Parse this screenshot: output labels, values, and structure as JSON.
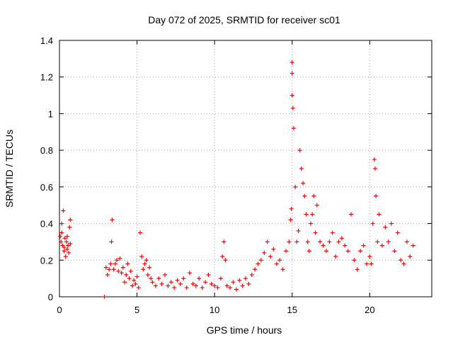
{
  "chart_data": {
    "type": "scatter",
    "title": "Day 072 of 2025, SRMTID for receiver sc01",
    "xlabel": "GPS time / hours",
    "ylabel": "SRMTID / TECUs",
    "xlim": [
      0,
      24
    ],
    "ylim": [
      0,
      1.4
    ],
    "xticks": [
      0,
      5,
      10,
      15,
      20
    ],
    "xtick_labels": [
      "0",
      "5",
      "10",
      "15",
      "20"
    ],
    "yticks": [
      0,
      0.2,
      0.4,
      0.6,
      0.8,
      1.0,
      1.2,
      1.4
    ],
    "ytick_labels": [
      "0",
      "0.2",
      "0.4",
      "0.6",
      "0.8",
      "1",
      "1.2",
      "1.4"
    ],
    "grid": true,
    "marker": "+",
    "color": "#ff0000",
    "series": [
      {
        "name": "SRMTID",
        "x": [
          0.05,
          0.1,
          0.15,
          0.2,
          0.25,
          0.3,
          0.35,
          0.4,
          0.45,
          0.5,
          0.55,
          0.6,
          0.65,
          0.7,
          0.15,
          0.3,
          0.5,
          0.7,
          2.9,
          3.0,
          3.1,
          3.2,
          3.3,
          3.35,
          3.4,
          3.5,
          3.6,
          3.7,
          3.8,
          3.9,
          4.0,
          4.1,
          4.2,
          4.3,
          4.4,
          4.5,
          4.6,
          4.7,
          4.8,
          4.9,
          5.0,
          5.1,
          5.2,
          5.3,
          5.4,
          5.5,
          5.6,
          5.7,
          5.8,
          5.9,
          6.0,
          6.2,
          6.4,
          6.6,
          6.8,
          7.0,
          7.2,
          7.4,
          7.6,
          7.8,
          8.0,
          8.2,
          8.4,
          8.6,
          8.8,
          9.0,
          9.2,
          9.4,
          9.6,
          9.8,
          10.0,
          10.2,
          10.4,
          10.5,
          10.6,
          10.7,
          10.8,
          11.0,
          11.2,
          11.4,
          11.6,
          11.8,
          12.0,
          12.2,
          12.4,
          12.6,
          12.8,
          13.0,
          13.2,
          13.4,
          13.6,
          13.8,
          14.0,
          14.2,
          14.4,
          14.6,
          14.8,
          14.9,
          14.95,
          15.0,
          15.0,
          15.0,
          15.05,
          15.1,
          15.2,
          15.3,
          15.4,
          15.5,
          15.6,
          15.7,
          15.8,
          15.9,
          16.0,
          16.1,
          16.2,
          16.3,
          16.4,
          16.5,
          16.6,
          16.8,
          17.0,
          17.2,
          17.4,
          17.6,
          17.8,
          18.0,
          18.2,
          18.4,
          18.6,
          18.8,
          19.0,
          19.2,
          19.4,
          19.6,
          19.8,
          20.0,
          20.1,
          20.2,
          20.3,
          20.35,
          20.4,
          20.5,
          20.6,
          20.8,
          21.0,
          21.2,
          21.4,
          21.6,
          21.8,
          22.0,
          22.2,
          22.4,
          22.6,
          22.8
        ],
        "y": [
          0.33,
          0.3,
          0.35,
          0.28,
          0.47,
          0.25,
          0.32,
          0.22,
          0.3,
          0.26,
          0.28,
          0.24,
          0.38,
          0.42,
          0.4,
          0.27,
          0.33,
          0.29,
          0.0,
          0.16,
          0.12,
          0.15,
          0.18,
          0.3,
          0.42,
          0.15,
          0.18,
          0.2,
          0.14,
          0.21,
          0.13,
          0.16,
          0.08,
          0.12,
          0.18,
          0.1,
          0.14,
          0.06,
          0.09,
          0.07,
          0.11,
          0.05,
          0.35,
          0.22,
          0.15,
          0.18,
          0.2,
          0.12,
          0.16,
          0.1,
          0.08,
          0.06,
          0.1,
          0.07,
          0.12,
          0.06,
          0.08,
          0.05,
          0.09,
          0.07,
          0.1,
          0.05,
          0.13,
          0.07,
          0.06,
          0.1,
          0.05,
          0.08,
          0.12,
          0.07,
          0.06,
          0.05,
          0.1,
          0.22,
          0.3,
          0.2,
          0.06,
          0.05,
          0.08,
          0.04,
          0.09,
          0.06,
          0.1,
          0.07,
          0.12,
          0.15,
          0.18,
          0.2,
          0.24,
          0.3,
          0.22,
          0.26,
          0.18,
          0.2,
          0.15,
          0.25,
          0.3,
          0.42,
          0.48,
          1.28,
          1.22,
          1.1,
          1.03,
          0.92,
          0.6,
          0.3,
          0.36,
          0.8,
          0.7,
          0.62,
          0.55,
          0.45,
          0.3,
          0.25,
          0.4,
          0.45,
          0.55,
          0.35,
          0.5,
          0.3,
          0.28,
          0.25,
          0.3,
          0.35,
          0.22,
          0.3,
          0.32,
          0.28,
          0.25,
          0.45,
          0.2,
          0.15,
          0.25,
          0.28,
          0.18,
          0.22,
          0.18,
          0.4,
          0.75,
          0.7,
          0.55,
          0.3,
          0.45,
          0.28,
          0.38,
          0.3,
          0.4,
          0.25,
          0.35,
          0.2,
          0.18,
          0.3,
          0.22,
          0.28
        ]
      }
    ]
  }
}
